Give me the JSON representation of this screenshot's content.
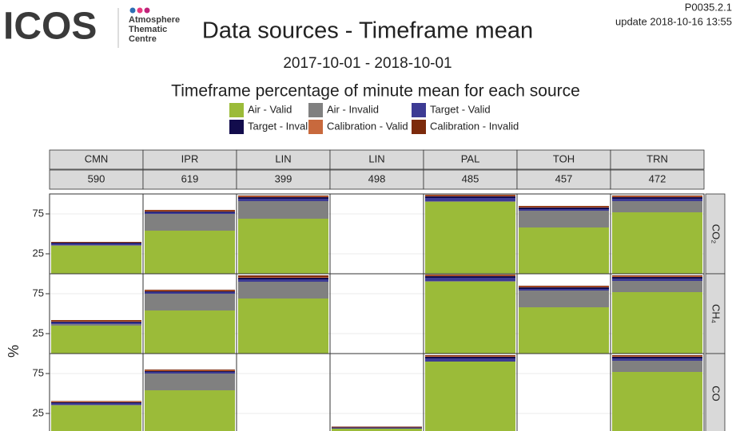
{
  "logo": {
    "name": "ICOS",
    "lines": [
      "Atmosphere",
      "Thematic",
      "Centre"
    ]
  },
  "code": "P0035.2.1",
  "update": "update  2018-10-16 13:55",
  "chart_data": {
    "type": "faceted-stacked-bar",
    "title": "Data sources - Timeframe mean",
    "subtitle": "2017-10-01 - 2018-10-01",
    "caption": "Timeframe percentage of minute mean for each source",
    "y_label": "%",
    "columns": [
      "CMN",
      "IPR",
      "LIN",
      "LIN",
      "PAL",
      "TOH",
      "TRN"
    ],
    "column_counts": [
      "590",
      "619",
      "399",
      "498",
      "485",
      "457",
      "472"
    ],
    "rows": [
      "CO₂",
      "CH₄",
      "CO"
    ],
    "ylim": [
      0,
      100
    ],
    "yticks": [
      25,
      75
    ],
    "grid": true,
    "series": [
      {
        "name": "Air - Valid",
        "color": "#9bbb39",
        "values": [
          [
            35,
            54,
            69,
            0,
            90,
            58,
            77
          ],
          [
            35,
            54,
            69,
            0,
            90,
            58,
            77
          ],
          [
            35,
            54,
            0,
            6,
            90,
            0,
            77
          ]
        ]
      },
      {
        "name": "Air - Invalid",
        "color": "#808080",
        "values": [
          [
            1,
            21,
            22,
            0,
            1,
            21,
            14
          ],
          [
            2,
            21,
            21,
            0,
            1,
            21,
            14
          ],
          [
            1,
            21,
            0,
            0,
            0,
            0,
            14
          ]
        ]
      },
      {
        "name": "Target - Valid",
        "color": "#3d3b94",
        "values": [
          [
            2,
            2,
            3,
            0,
            4,
            2,
            3
          ],
          [
            2,
            2,
            3,
            0,
            4,
            2,
            3
          ],
          [
            2,
            2,
            0,
            1,
            4,
            0,
            3
          ]
        ]
      },
      {
        "name": "Target - Invalid",
        "color": "#120c4c",
        "values": [
          [
            1,
            1,
            2,
            0,
            2,
            2,
            2
          ],
          [
            1,
            1,
            2,
            0,
            2,
            2,
            2
          ],
          [
            1,
            1,
            0,
            0.5,
            2,
            0,
            2
          ]
        ]
      },
      {
        "name": "Calibration - Valid",
        "color": "#c8693d",
        "values": [
          [
            0.5,
            1,
            1,
            0,
            1,
            1,
            1
          ],
          [
            1,
            1,
            1,
            0,
            1,
            1,
            1
          ],
          [
            1,
            1,
            0,
            0.5,
            1,
            0,
            1
          ]
        ]
      },
      {
        "name": "Calibration - Invalid",
        "color": "#7c2a0b",
        "values": [
          [
            0.5,
            1,
            1,
            0,
            1,
            1,
            1
          ],
          [
            1,
            1,
            2,
            0,
            1,
            1,
            1
          ],
          [
            0.5,
            1,
            0,
            0.5,
            1,
            0,
            1
          ]
        ]
      }
    ]
  }
}
